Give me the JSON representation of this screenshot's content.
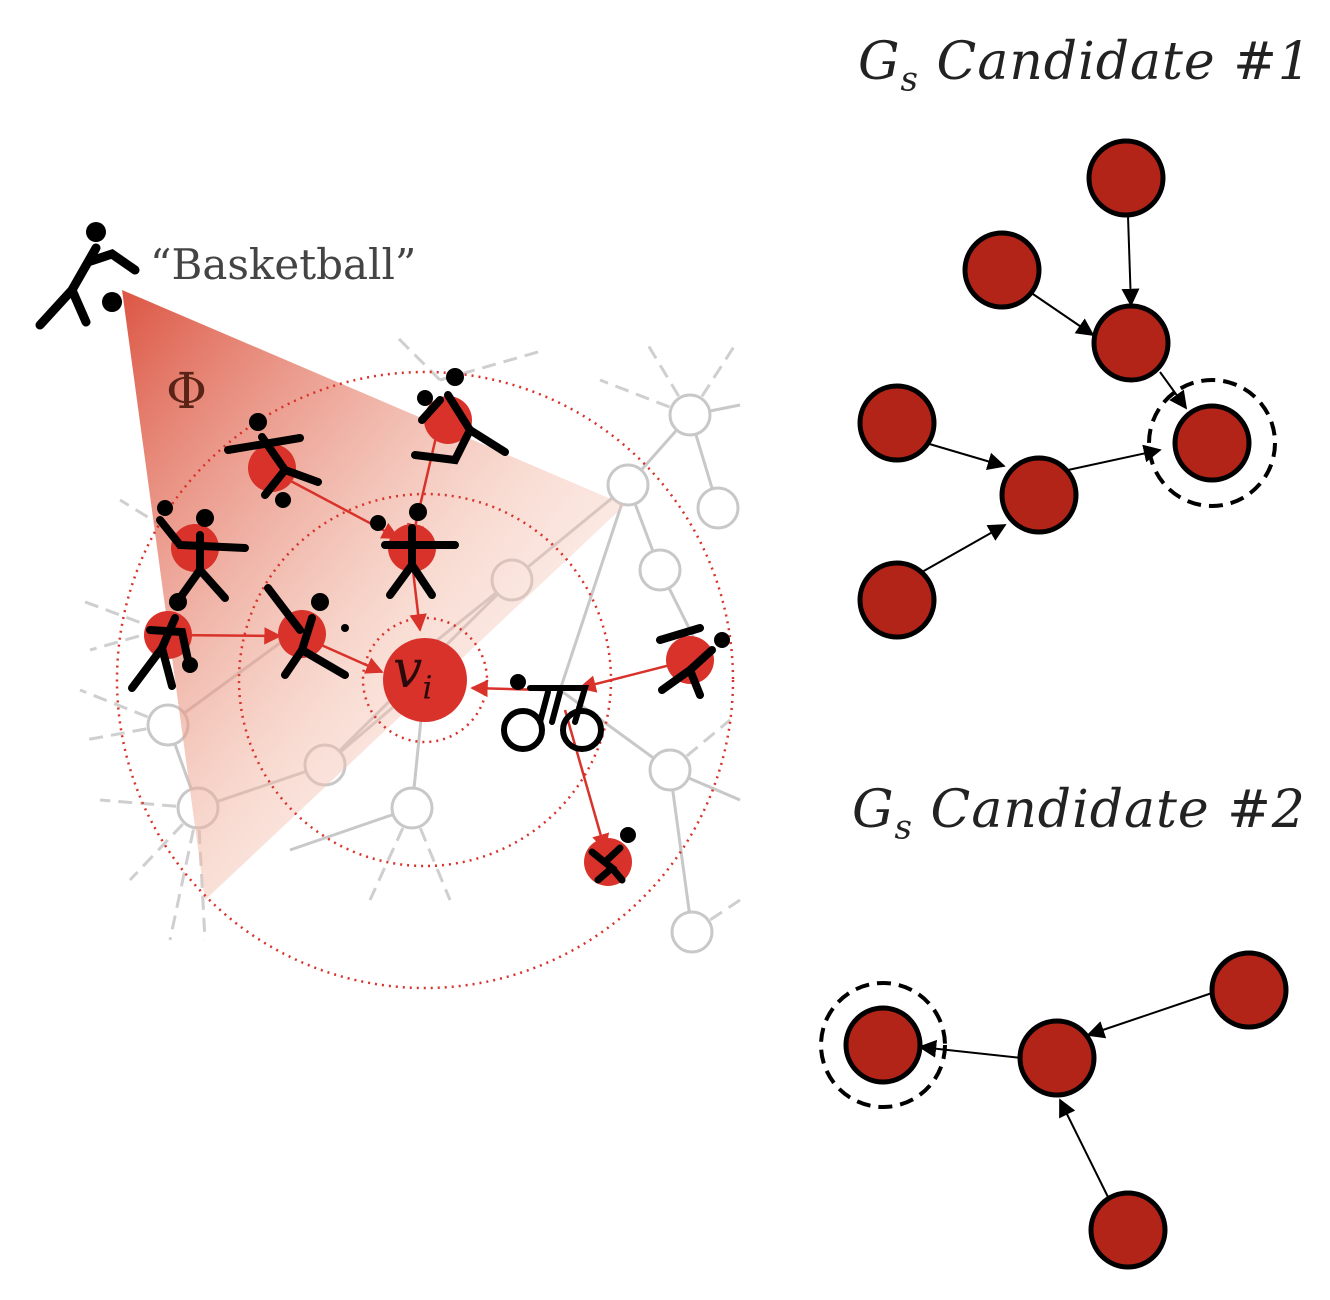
{
  "left_panel": {
    "query_label": "“Basketball”",
    "phi_label": "Φ",
    "target_symbol": "v",
    "target_subscript": "i"
  },
  "candidates": [
    {
      "title_main": "G",
      "title_sub": "s",
      "title_rest": " Candidate #1"
    },
    {
      "title_main": "G",
      "title_sub": "s",
      "title_rest": " Candidate #2"
    }
  ],
  "colors": {
    "node_fill": "#b22318",
    "node_stroke": "#000000",
    "highlight_red": "#d8322a",
    "faded_grey": "#c8c8c8",
    "text_dark": "#222222"
  },
  "icons": [
    "basketball-player-icon",
    "soccer-player-icon",
    "runner-icon",
    "cyclist-icon",
    "baseball-player-icon"
  ]
}
